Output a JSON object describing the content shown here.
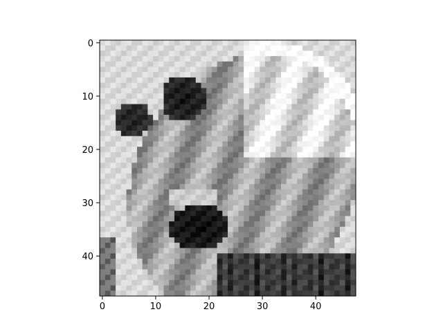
{
  "chart_data": {
    "type": "heatmap",
    "title": "",
    "xlabel": "",
    "ylabel": "",
    "colormap": "gray",
    "xlim": [
      -0.5,
      47.5
    ],
    "ylim": [
      47.5,
      -0.5
    ],
    "xticks": [
      0,
      10,
      20,
      30,
      40
    ],
    "yticks": [
      0,
      10,
      20,
      30,
      40
    ],
    "xtick_labels": [
      "0",
      "10",
      "20",
      "30",
      "40"
    ],
    "ytick_labels": [
      "0",
      "10",
      "20",
      "30",
      "40"
    ],
    "grid": false,
    "image_size": [
      48,
      48
    ],
    "image_description_note": "48x48 grayscale pixel image of an angry screaming face"
  },
  "colors": {
    "axis": "#000000",
    "background": "#ffffff"
  }
}
